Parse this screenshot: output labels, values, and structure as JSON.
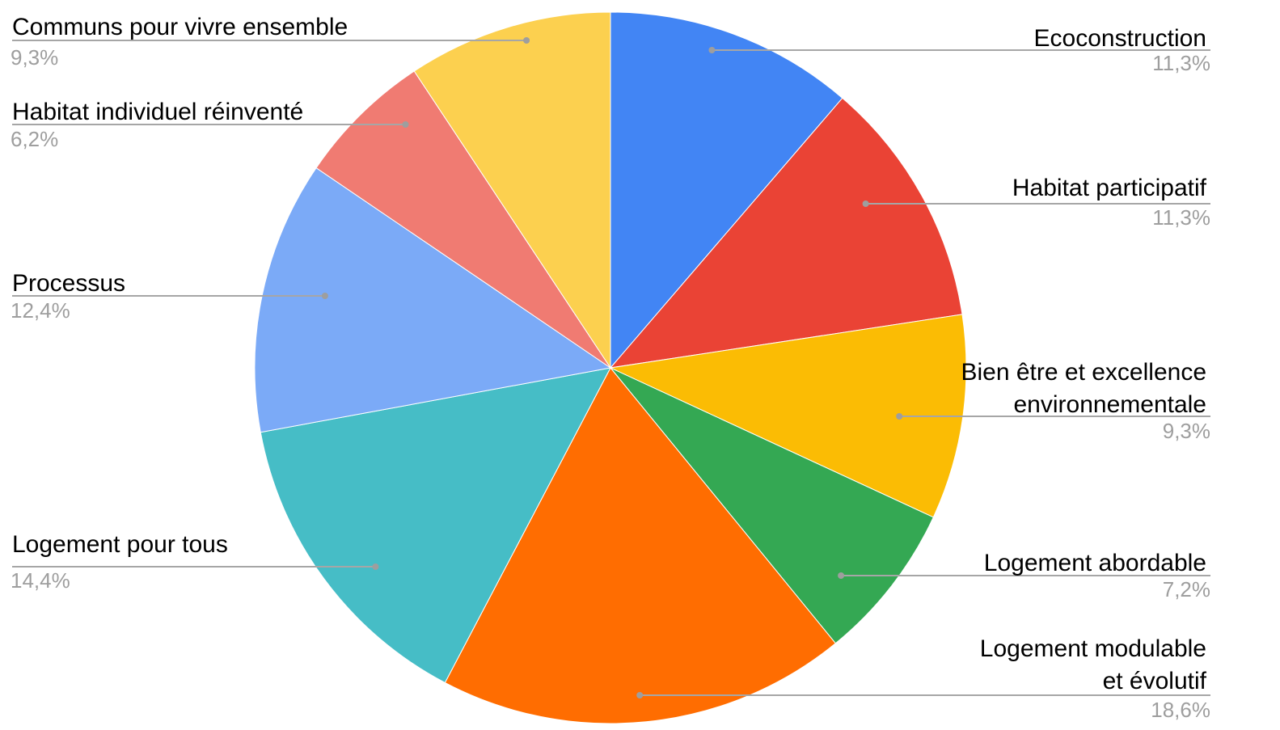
{
  "chart_data": {
    "type": "pie",
    "title": "",
    "start_angle_deg": 0,
    "direction": "clockwise",
    "legend": "labels-outside",
    "slices": [
      {
        "label": "Ecoconstruction",
        "value": 11.3,
        "percent_label": "11,3%",
        "color": "#4285F4"
      },
      {
        "label": "Habitat participatif",
        "value": 11.3,
        "percent_label": "11,3%",
        "color": "#EA4335"
      },
      {
        "label": "Bien être et excellence environnementale",
        "label_lines": [
          "Bien être et excellence",
          "environnementale"
        ],
        "value": 9.3,
        "percent_label": "9,3%",
        "color": "#FBBC04"
      },
      {
        "label": "Logement abordable",
        "value": 7.2,
        "percent_label": "7,2%",
        "color": "#34A853"
      },
      {
        "label": "Logement modulable et évolutif",
        "label_lines": [
          "Logement modulable",
          "et évolutif"
        ],
        "value": 18.6,
        "percent_label": "18,6%",
        "color": "#FF6D01"
      },
      {
        "label": "Logement pour tous",
        "value": 14.4,
        "percent_label": "14,4%",
        "color": "#46BDC6"
      },
      {
        "label": "Processus",
        "value": 12.4,
        "percent_label": "12,4%",
        "color": "#7BAAF7"
      },
      {
        "label": "Habitat individuel réinventé",
        "value": 6.2,
        "percent_label": "6,2%",
        "color": "#F07B72"
      },
      {
        "label": "Communs pour vivre ensemble",
        "value": 9.3,
        "percent_label": "9,3%",
        "color": "#FCD04F"
      }
    ]
  }
}
